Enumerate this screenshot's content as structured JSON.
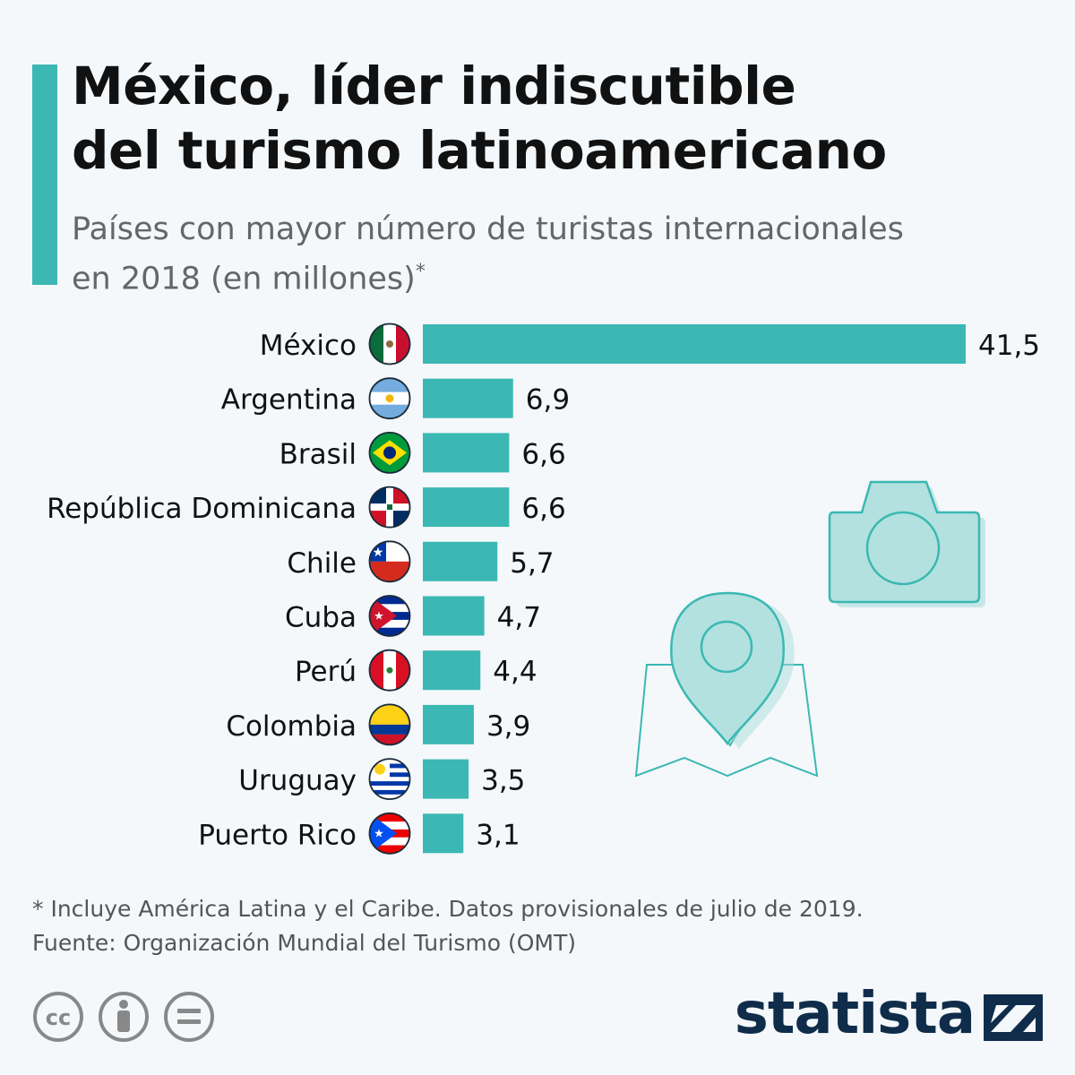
{
  "header": {
    "title_line1": "México, líder indiscutible",
    "title_line2": "del turismo latinoamericano",
    "subtitle_line1": "Países con mayor número de turistas internacionales",
    "subtitle_line2": "en 2018 (en millones)",
    "subtitle_mark": "*"
  },
  "chart_data": {
    "type": "bar",
    "orientation": "horizontal",
    "categories": [
      "México",
      "Argentina",
      "Brasil",
      "República Dominicana",
      "Chile",
      "Cuba",
      "Perú",
      "Colombia",
      "Uruguay",
      "Puerto Rico"
    ],
    "values": [
      41.5,
      6.9,
      6.6,
      6.6,
      5.7,
      4.7,
      4.4,
      3.9,
      3.5,
      3.1
    ],
    "value_labels": [
      "41,5",
      "6,9",
      "6,6",
      "6,6",
      "5,7",
      "4,7",
      "4,4",
      "3,9",
      "3,5",
      "3,1"
    ],
    "flag_icons": [
      "mexico-flag-icon",
      "argentina-flag-icon",
      "brazil-flag-icon",
      "dominican-republic-flag-icon",
      "chile-flag-icon",
      "cuba-flag-icon",
      "peru-flag-icon",
      "colombia-flag-icon",
      "uruguay-flag-icon",
      "puerto-rico-flag-icon"
    ],
    "bar_color": "#3bb8b3",
    "grid": false,
    "xlim": [
      0,
      41.5
    ]
  },
  "decorations": [
    "camera-icon",
    "map-pin-icon"
  ],
  "footer": {
    "note": "* Incluye América Latina y el Caribe. Datos provisionales de julio de 2019.",
    "source": "Fuente: Organización Mundial del Turismo (OMT)",
    "license_icons": [
      "cc-icon",
      "attribution-icon",
      "no-derivatives-icon"
    ],
    "brand": "statista"
  },
  "colors": {
    "accent": "#3bb8b3",
    "brand": "#0f2d4a",
    "background": "#f4f8fb"
  }
}
